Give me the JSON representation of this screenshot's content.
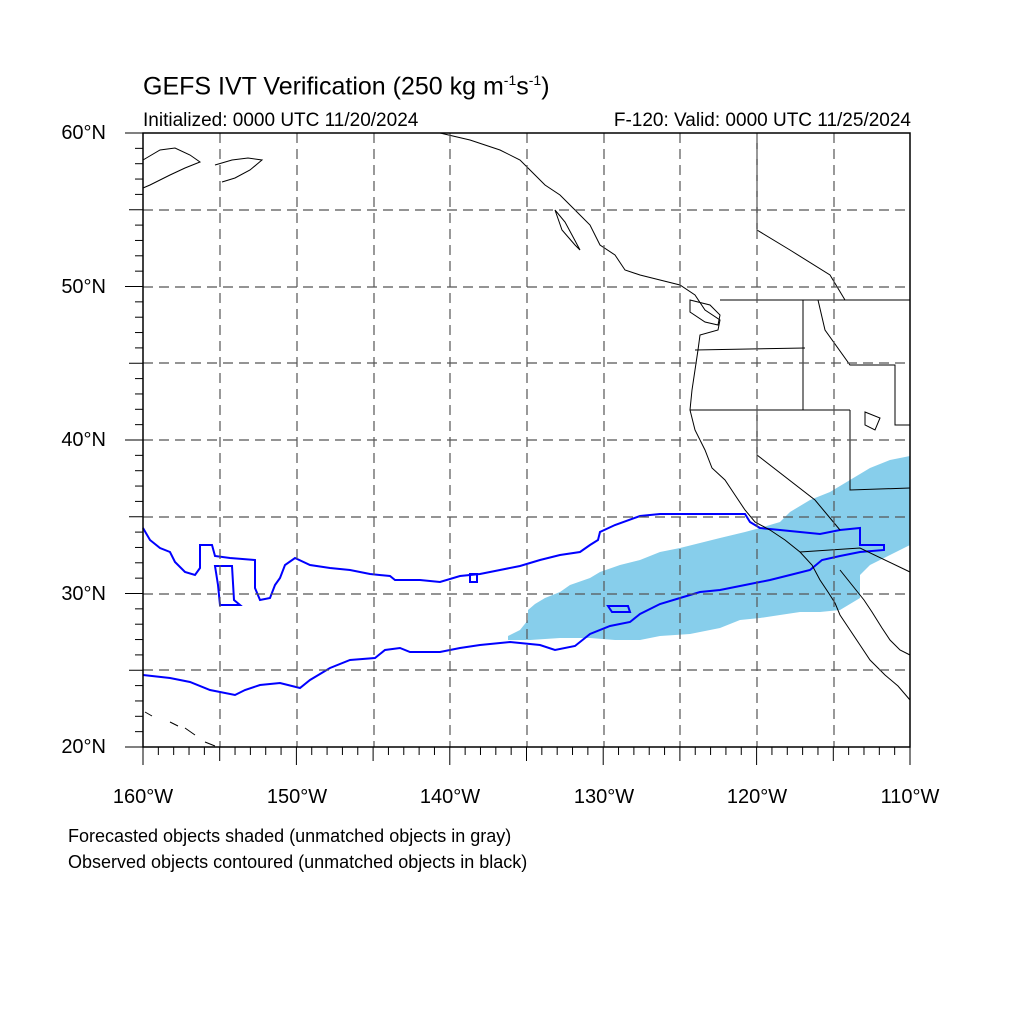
{
  "header": {
    "title_main": "GEFS IVT Verification (250 kg m",
    "title_exp1": "-1",
    "title_mid": "s",
    "title_exp2": "-1",
    "title_end": ")",
    "initialized": "Initialized: 0000 UTC 11/20/2024",
    "valid": "F-120: Valid: 0000 UTC 11/25/2024"
  },
  "axes": {
    "lat_labels": [
      "60°N",
      "50°N",
      "40°N",
      "30°N",
      "20°N"
    ],
    "lon_labels": [
      "160°W",
      "150°W",
      "140°W",
      "130°W",
      "120°W",
      "110°W"
    ]
  },
  "legend": {
    "line1": "Forecasted objects shaded (unmatched objects in gray)",
    "line2": "Observed objects contoured (unmatched objects in black)"
  },
  "colors": {
    "forecast_fill": "#87CEEB",
    "observed_contour": "#0000FF",
    "coastline": "#000000",
    "grid": "#555555"
  }
}
